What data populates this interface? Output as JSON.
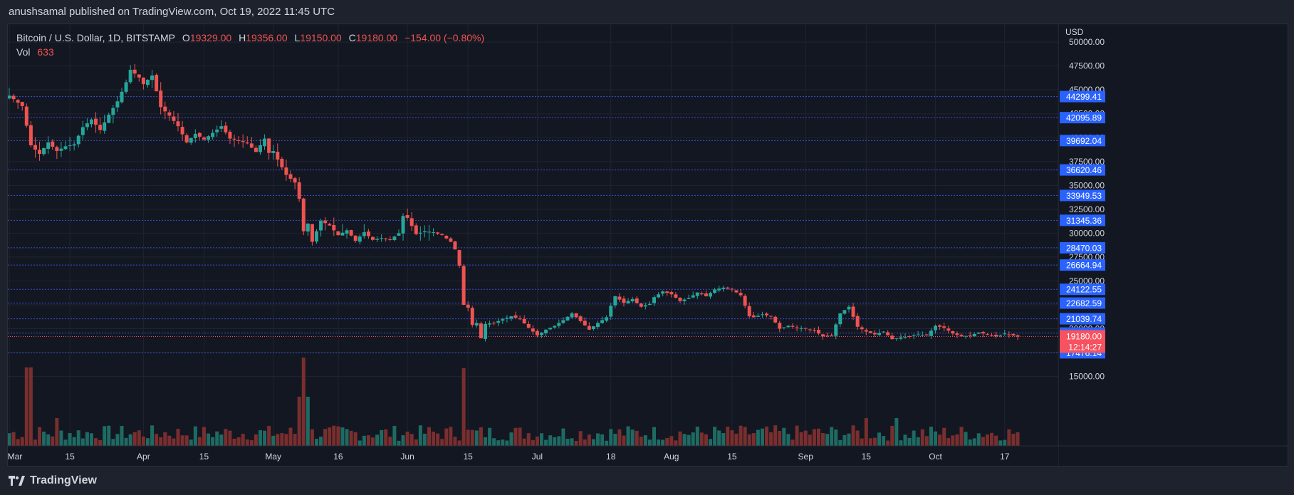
{
  "header": {
    "published": "anushsamal published on TradingView.com, Oct 19, 2022 11:45 UTC"
  },
  "legend": {
    "symbol": "Bitcoin / U.S. Dollar, 1D, BITSTAMP",
    "o_label": "O",
    "o_value": "19329.00",
    "h_label": "H",
    "h_value": "19356.00",
    "l_label": "L",
    "l_value": "19150.00",
    "c_label": "C",
    "c_value": "19180.00",
    "change": "−154.00 (−0.80%)",
    "vol_label": "Vol",
    "vol_value": "633"
  },
  "footer": {
    "brand": "TradingView"
  },
  "colors": {
    "up": "#26a69a",
    "down": "#ef5350",
    "vol_up": "#1e6b63",
    "vol_down": "#7a2e2e",
    "level_line": "#3b4fd1",
    "level_label_bg": "#2962ff",
    "last_price_bg": "#f7525f",
    "grid": "#1f2431"
  },
  "chart_data": {
    "type": "candlestick",
    "symbol": "Bitcoin / U.S. Dollar",
    "timeframe": "1D",
    "exchange": "BITSTAMP",
    "currency": "USD",
    "ylim": [
      14000,
      51500
    ],
    "y_ticks": [
      "15000.00",
      "17500.00",
      "20000.00",
      "22500.00",
      "25000.00",
      "27500.00",
      "30000.00",
      "32500.00",
      "35000.00",
      "37500.00",
      "40000.00",
      "42500.00",
      "45000.00",
      "47500.00",
      "50000.00"
    ],
    "x_ticks": [
      {
        "label": "Mar",
        "day": 0
      },
      {
        "label": "15",
        "day": 14
      },
      {
        "label": "Apr",
        "day": 31
      },
      {
        "label": "15",
        "day": 45
      },
      {
        "label": "May",
        "day": 61
      },
      {
        "label": "16",
        "day": 76
      },
      {
        "label": "Jun",
        "day": 92
      },
      {
        "label": "15",
        "day": 106
      },
      {
        "label": "Jul",
        "day": 122
      },
      {
        "label": "18",
        "day": 139
      },
      {
        "label": "Aug",
        "day": 153
      },
      {
        "label": "15",
        "day": 167
      },
      {
        "label": "Sep",
        "day": 184
      },
      {
        "label": "15",
        "day": 198
      },
      {
        "label": "Oct",
        "day": 214
      },
      {
        "label": "17",
        "day": 230
      }
    ],
    "levels": [
      "44299.41",
      "42095.89",
      "39692.04",
      "36620.46",
      "33949.53",
      "31345.36",
      "28470.03",
      "26664.94",
      "24122.55",
      "22682.59",
      "21039.74",
      "19544.76",
      "17476.14"
    ],
    "last_price": "19180.00",
    "countdown": "12:14:27",
    "closes": [
      [
        0,
        44400
      ],
      [
        3,
        43300
      ],
      [
        5,
        39200
      ],
      [
        7,
        38300
      ],
      [
        9,
        39500
      ],
      [
        11,
        38600
      ],
      [
        13,
        39100
      ],
      [
        15,
        39300
      ],
      [
        17,
        41100
      ],
      [
        19,
        41900
      ],
      [
        21,
        40800
      ],
      [
        23,
        42400
      ],
      [
        25,
        43800
      ],
      [
        27,
        45800
      ],
      [
        28,
        47100
      ],
      [
        30,
        46300
      ],
      [
        31,
        45600
      ],
      [
        33,
        46500
      ],
      [
        35,
        43200
      ],
      [
        37,
        42300
      ],
      [
        39,
        41200
      ],
      [
        41,
        39500
      ],
      [
        43,
        40400
      ],
      [
        45,
        39800
      ],
      [
        47,
        40500
      ],
      [
        49,
        41200
      ],
      [
        51,
        39900
      ],
      [
        53,
        39700
      ],
      [
        55,
        39400
      ],
      [
        57,
        38500
      ],
      [
        59,
        39900
      ],
      [
        60,
        38400
      ],
      [
        61,
        38600
      ],
      [
        62,
        37700
      ],
      [
        64,
        36100
      ],
      [
        66,
        35300
      ],
      [
        67,
        33600
      ],
      [
        68,
        30200
      ],
      [
        69,
        31000
      ],
      [
        70,
        29100
      ],
      [
        72,
        31300
      ],
      [
        74,
        30800
      ],
      [
        76,
        29800
      ],
      [
        78,
        30300
      ],
      [
        80,
        29200
      ],
      [
        82,
        30100
      ],
      [
        84,
        29300
      ],
      [
        86,
        29500
      ],
      [
        88,
        29300
      ],
      [
        90,
        30000
      ],
      [
        91,
        31800
      ],
      [
        92,
        31600
      ],
      [
        94,
        29900
      ],
      [
        96,
        30200
      ],
      [
        98,
        30100
      ],
      [
        100,
        29800
      ],
      [
        102,
        29100
      ],
      [
        103,
        28300
      ],
      [
        104,
        26600
      ],
      [
        105,
        22500
      ],
      [
        106,
        22200
      ],
      [
        107,
        20400
      ],
      [
        108,
        20600
      ],
      [
        109,
        19000
      ],
      [
        110,
        20500
      ],
      [
        112,
        20600
      ],
      [
        114,
        21000
      ],
      [
        116,
        21300
      ],
      [
        118,
        21000
      ],
      [
        120,
        20100
      ],
      [
        122,
        19300
      ],
      [
        124,
        19900
      ],
      [
        126,
        20300
      ],
      [
        128,
        20900
      ],
      [
        130,
        21600
      ],
      [
        132,
        20800
      ],
      [
        134,
        19900
      ],
      [
        136,
        20600
      ],
      [
        138,
        21200
      ],
      [
        139,
        22400
      ],
      [
        140,
        23400
      ],
      [
        142,
        22700
      ],
      [
        144,
        23100
      ],
      [
        146,
        22300
      ],
      [
        148,
        22600
      ],
      [
        149,
        23300
      ],
      [
        151,
        23900
      ],
      [
        153,
        23600
      ],
      [
        155,
        22900
      ],
      [
        157,
        23200
      ],
      [
        159,
        23800
      ],
      [
        161,
        23400
      ],
      [
        163,
        24100
      ],
      [
        165,
        24300
      ],
      [
        167,
        24100
      ],
      [
        169,
        23500
      ],
      [
        171,
        21300
      ],
      [
        172,
        21200
      ],
      [
        174,
        21500
      ],
      [
        176,
        21300
      ],
      [
        178,
        20000
      ],
      [
        180,
        20300
      ],
      [
        182,
        20100
      ],
      [
        184,
        20000
      ],
      [
        186,
        19800
      ],
      [
        188,
        19200
      ],
      [
        190,
        19300
      ],
      [
        192,
        21600
      ],
      [
        194,
        22300
      ],
      [
        196,
        20200
      ],
      [
        198,
        19700
      ],
      [
        200,
        19400
      ],
      [
        202,
        19700
      ],
      [
        204,
        18900
      ],
      [
        206,
        19100
      ],
      [
        208,
        19200
      ],
      [
        210,
        19400
      ],
      [
        212,
        19300
      ],
      [
        214,
        20300
      ],
      [
        216,
        20100
      ],
      [
        218,
        19500
      ],
      [
        220,
        19200
      ],
      [
        222,
        19300
      ],
      [
        224,
        19600
      ],
      [
        226,
        19400
      ],
      [
        228,
        19200
      ],
      [
        230,
        19500
      ],
      [
        232,
        19300
      ],
      [
        233,
        19180
      ]
    ]
  }
}
